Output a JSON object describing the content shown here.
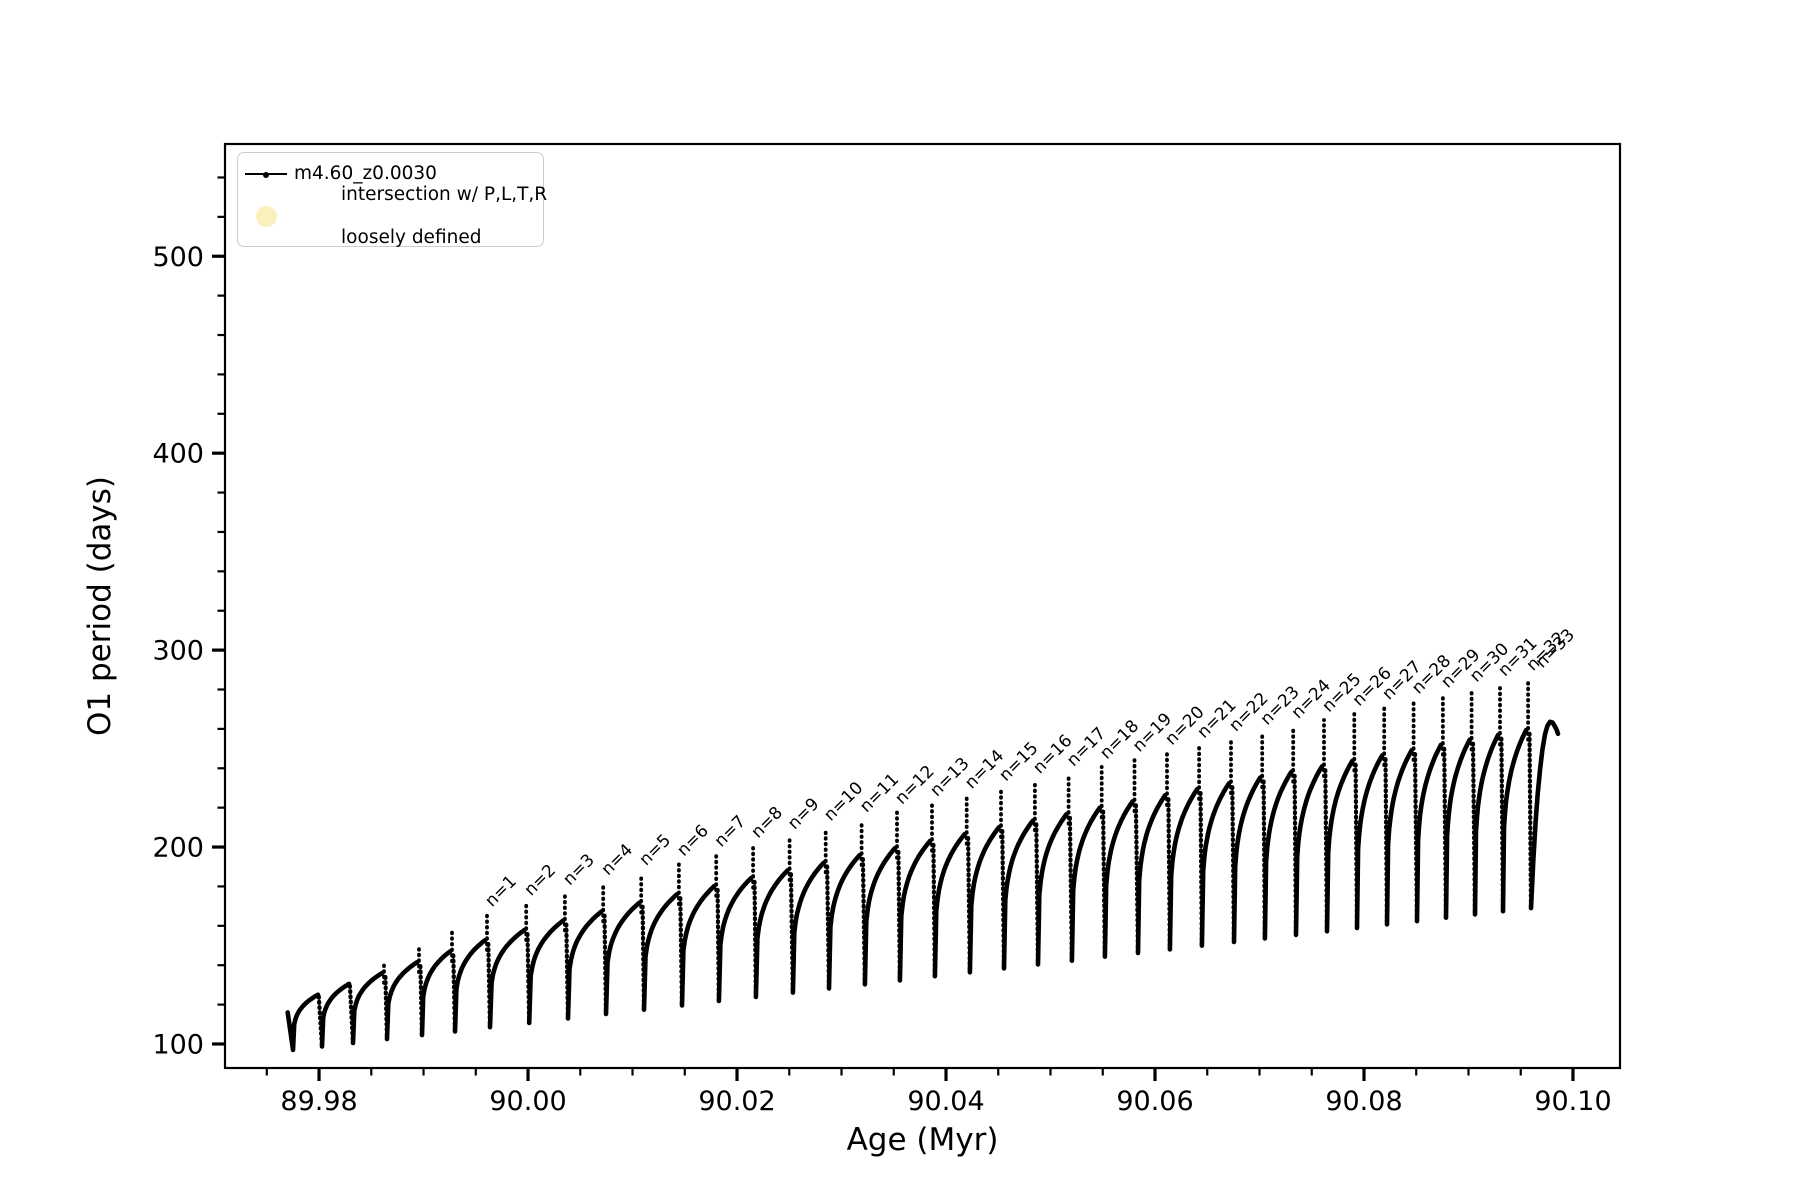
{
  "legend": {
    "series_label": "m4.60_z0.0030",
    "scatter_label_line1": "intersection w/ P,L,T,R",
    "scatter_label_line2": "loosely defined",
    "scatter_marker_color": "#faf0be",
    "line_color": "#000000"
  },
  "chart_data": {
    "type": "line",
    "title": "",
    "xlabel": "Age (Myr)",
    "ylabel": "O1 period (days)",
    "xlim": [
      89.971,
      90.1045
    ],
    "ylim": [
      87.8,
      557.0
    ],
    "grid": false,
    "legend_position": "upper left",
    "x_major_ticks": [
      89.98,
      90.0,
      90.02,
      90.04,
      90.06,
      90.08,
      90.1
    ],
    "x_major_tick_labels": [
      "89.98",
      "90.00",
      "90.02",
      "90.04",
      "90.06",
      "90.08",
      "90.10"
    ],
    "x_minor_step": 0.005,
    "y_major_ticks": [
      100,
      200,
      300,
      400,
      500
    ],
    "y_major_tick_labels": [
      "100",
      "200",
      "300",
      "400",
      "500"
    ],
    "y_minor_step": 20,
    "series_name": "m4.60_z0.0030",
    "series_description": "Sawtooth period evolution: each cycle rises from a deep dip, arcs to a rounded top, emits a thin vertical spike, then plunges to the next dip. Cycle k entries: [x_dip_end, dip_end_value, arch_top_value, spike_x, spike_top_value, label]",
    "start_point": [
      89.977,
      116.0
    ],
    "first_dip": [
      89.97751,
      97.0
    ],
    "cycles": [
      [
        89.98028,
        98.7,
        125.0,
        null,
        null,
        null
      ],
      [
        89.98325,
        100.5,
        130.5,
        null,
        null,
        null
      ],
      [
        89.9865,
        102.5,
        136.0,
        89.98622,
        141.0,
        null
      ],
      [
        89.98985,
        104.5,
        141.5,
        89.98957,
        149.5,
        null
      ],
      [
        89.99301,
        106.4,
        147.0,
        89.99272,
        158.0,
        null
      ],
      [
        89.99636,
        108.5,
        152.7,
        89.99607,
        165.7,
        "n=1"
      ],
      [
        90.00011,
        110.7,
        157.8,
        89.99982,
        171.3,
        "n=2"
      ],
      [
        90.00382,
        113.0,
        162.6,
        90.00353,
        176.6,
        "n=3"
      ],
      [
        90.00746,
        115.2,
        167.2,
        90.00719,
        181.7,
        "n=4"
      ],
      [
        90.0111,
        117.4,
        171.7,
        90.01083,
        186.6,
        "n=5"
      ],
      [
        90.01473,
        119.6,
        176.0,
        90.01444,
        191.4,
        "n=6"
      ],
      [
        90.01827,
        121.8,
        180.2,
        90.01801,
        196.1,
        "n=7"
      ],
      [
        90.02181,
        123.9,
        184.3,
        90.02154,
        200.6,
        "n=8"
      ],
      [
        90.02535,
        126.1,
        188.2,
        90.02503,
        205.0,
        "n=9"
      ],
      [
        90.0288,
        128.2,
        192.1,
        90.02849,
        209.3,
        "n=10"
      ],
      [
        90.03224,
        130.3,
        195.9,
        90.03192,
        213.6,
        "n=11"
      ],
      [
        90.03559,
        132.3,
        199.5,
        90.03531,
        217.7,
        "n=12"
      ],
      [
        90.03894,
        134.4,
        203.1,
        90.03866,
        221.7,
        "n=13"
      ],
      [
        90.04229,
        136.4,
        206.6,
        90.04198,
        225.6,
        "n=14"
      ],
      [
        90.04555,
        138.4,
        210.1,
        90.04526,
        229.5,
        "n=15"
      ],
      [
        90.0488,
        140.4,
        213.5,
        90.04851,
        233.3,
        "n=16"
      ],
      [
        90.05205,
        142.3,
        216.8,
        90.05173,
        237.0,
        "n=17"
      ],
      [
        90.05521,
        144.3,
        220.0,
        90.0549,
        240.7,
        "n=18"
      ],
      [
        90.05837,
        146.2,
        223.2,
        90.05804,
        244.3,
        "n=19"
      ],
      [
        90.06143,
        148.0,
        226.3,
        90.06115,
        247.8,
        "n=20"
      ],
      [
        90.06449,
        149.9,
        229.4,
        90.06422,
        251.3,
        "n=21"
      ],
      [
        90.06756,
        151.8,
        232.4,
        90.06727,
        254.7,
        "n=22"
      ],
      [
        90.07052,
        153.6,
        235.3,
        90.07026,
        258.0,
        "n=23"
      ],
      [
        90.07349,
        155.4,
        238.2,
        90.07323,
        261.3,
        "n=24"
      ],
      [
        90.07646,
        157.2,
        241.0,
        90.07617,
        264.5,
        "n=25"
      ],
      [
        90.07933,
        158.9,
        243.8,
        90.07907,
        267.6,
        "n=26"
      ],
      [
        90.0822,
        160.7,
        246.6,
        90.08193,
        270.8,
        "n=27"
      ],
      [
        90.08507,
        162.4,
        249.2,
        90.08475,
        273.8,
        "n=28"
      ],
      [
        90.08785,
        164.1,
        251.9,
        90.08755,
        276.8,
        "n=29"
      ],
      [
        90.09062,
        165.8,
        254.5,
        90.0903,
        279.8,
        "n=30"
      ],
      [
        90.0933,
        167.4,
        257.0,
        90.09302,
        282.7,
        "n=31"
      ],
      [
        90.09598,
        169.0,
        259.5,
        90.09571,
        285.5,
        "n=32"
      ]
    ],
    "final_arc": [
      [
        90.09598,
        169.0
      ],
      [
        90.0962,
        193.0
      ],
      [
        90.09641,
        212.0
      ],
      [
        90.09662,
        227.0
      ],
      [
        90.09684,
        239.0
      ],
      [
        90.09707,
        249.5
      ],
      [
        90.09731,
        257.0
      ],
      [
        90.09755,
        261.5
      ],
      [
        90.0978,
        263.6
      ],
      [
        90.09805,
        263.2
      ],
      [
        90.0983,
        261.0
      ],
      [
        90.09845,
        259.3
      ],
      [
        90.09857,
        257.5
      ]
    ],
    "extra_annotations": [
      {
        "label": "n=33",
        "x": 90.0966,
        "y": 287.0
      }
    ]
  }
}
